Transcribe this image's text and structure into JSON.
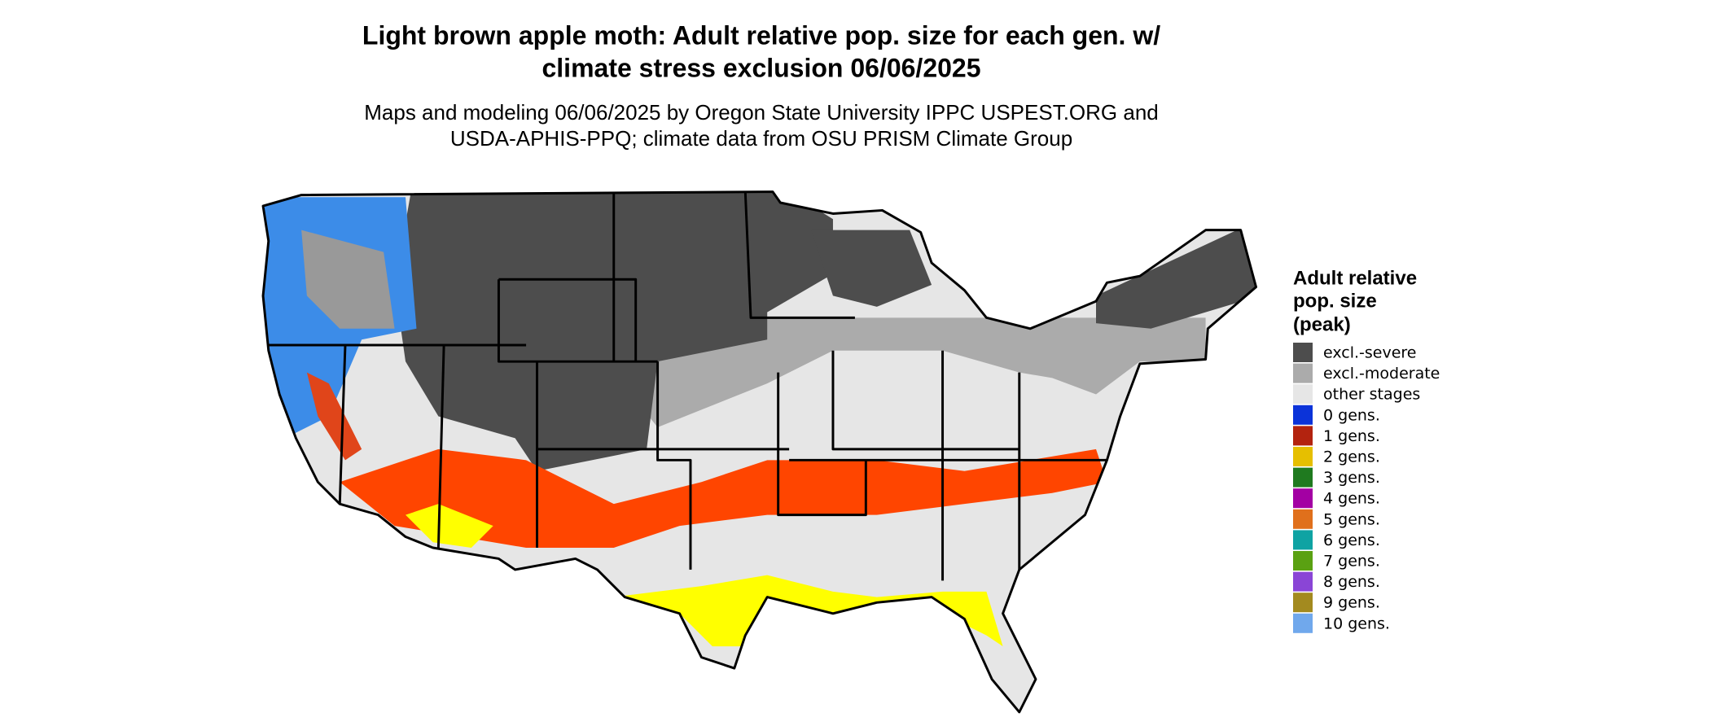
{
  "title": [
    "Light brown apple moth: Adult relative pop. size for each gen. w/",
    "climate stress exclusion 06/06/2025"
  ],
  "subtitle": [
    "Maps and modeling 06/06/2025 by Oregon State University IPPC USPEST.ORG and",
    "USDA-APHIS-PPQ; climate data from OSU PRISM Climate Group"
  ],
  "legend": {
    "title": [
      "Adult relative",
      "pop. size",
      "(peak)"
    ],
    "items": [
      {
        "label": "excl.-severe",
        "color": "#4d4d4d"
      },
      {
        "label": "excl.-moderate",
        "color": "#ababab"
      },
      {
        "label": "other stages",
        "color": "#e6e6e6"
      },
      {
        "label": "0 gens.",
        "color": "#0b33d9"
      },
      {
        "label": "1 gens.",
        "color": "#b3230f"
      },
      {
        "label": "2 gens.",
        "color": "#e6bf00"
      },
      {
        "label": "3 gens.",
        "color": "#1f7a1f"
      },
      {
        "label": "4 gens.",
        "color": "#a300a3"
      },
      {
        "label": "5 gens.",
        "color": "#e0701c"
      },
      {
        "label": "6 gens.",
        "color": "#0fa3a3"
      },
      {
        "label": "7 gens.",
        "color": "#5aa112"
      },
      {
        "label": "8 gens.",
        "color": "#8a45d6"
      },
      {
        "label": "9 gens.",
        "color": "#a38a1f"
      },
      {
        "label": "10 gens.",
        "color": "#70a8ec"
      }
    ]
  }
}
